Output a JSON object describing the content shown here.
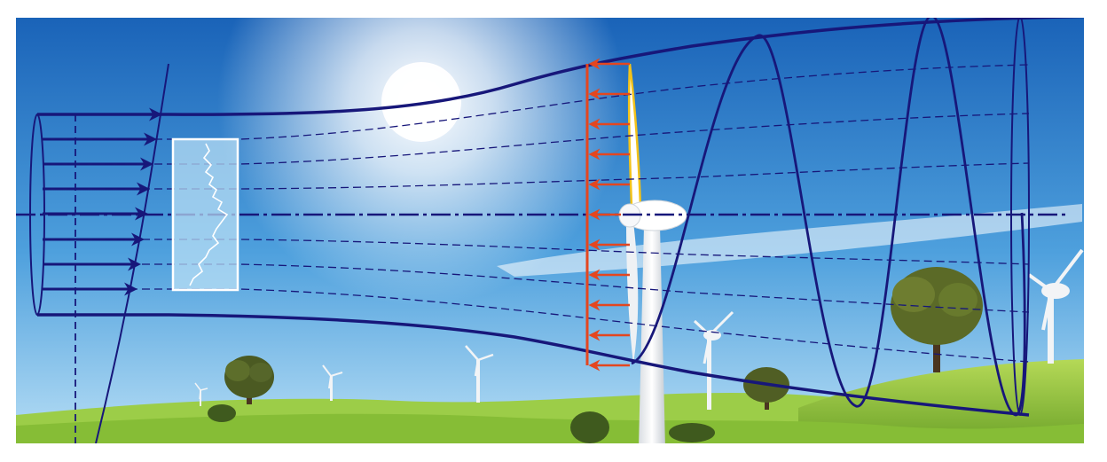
{
  "diagram": {
    "colors": {
      "flow_lines": "#17177a",
      "thrust_arrows": "#e4461f",
      "blade_highlight": "#f2c21a",
      "sky_top": "#1f6fc4",
      "sky_bottom": "#a9d8f4",
      "grass": "#8fc43a",
      "turbulence_box": "#bfe3f7"
    },
    "elements": {
      "inflow_arrows": 8,
      "streamlines_per_side": 3,
      "thrust_arrows": 11,
      "wake_helix_loops": 3,
      "background_turbines": 6,
      "trees": 4
    },
    "icons": [
      "wind-turbine-icon",
      "tree-icon",
      "arrow-right-icon",
      "arrow-left-icon",
      "turbulence-profile-icon"
    ]
  }
}
